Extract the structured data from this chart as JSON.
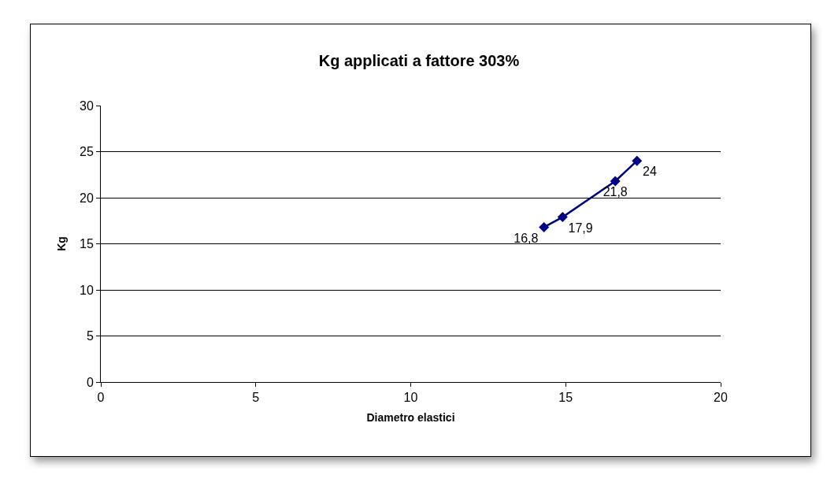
{
  "chart_data": {
    "type": "line",
    "title": "Kg applicati a fattore 303%",
    "xlabel": "Diametro elastici",
    "ylabel": "Kg",
    "x": [
      14.3,
      14.9,
      16.6,
      17.3
    ],
    "series": [
      {
        "color": "#000080",
        "values": [
          16.8,
          17.9,
          21.8,
          24
        ],
        "value_labels": [
          "16,8",
          "17,9",
          "21,8",
          "24"
        ]
      }
    ],
    "xlim": [
      0,
      20
    ],
    "xticks": [
      0,
      5,
      10,
      15,
      20
    ],
    "ylim": [
      0,
      30
    ],
    "yticks": [
      0,
      5,
      10,
      15,
      20,
      25,
      30
    ],
    "grid": "y",
    "marker": "diamond",
    "line_style": "solid"
  }
}
